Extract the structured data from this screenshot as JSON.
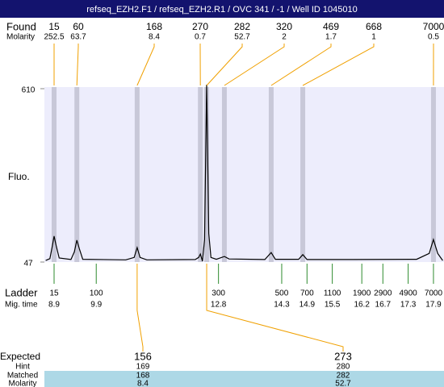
{
  "header": {
    "title": "refseq_EZH2.F1 / refseq_EZH2.R1 / OVC 341 / -1 / Well ID 1045010"
  },
  "chart_data": {
    "type": "line",
    "y_label": "Fluo.",
    "ylim": [
      47,
      610
    ],
    "yticks": [
      47,
      610
    ],
    "xlim": [
      8.67,
      18.15
    ],
    "trace": {
      "color": "#000000",
      "x": [
        8.7,
        8.8,
        8.86,
        8.9,
        8.95,
        9.02,
        9.3,
        9.38,
        9.44,
        9.5,
        9.58,
        10.6,
        10.8,
        10.87,
        10.94,
        11.1,
        12.25,
        12.33,
        12.37,
        12.42,
        12.47,
        12.52,
        12.57,
        12.62,
        12.75,
        12.94,
        13.05,
        13.9,
        14.05,
        14.15,
        14.7,
        14.8,
        14.9,
        16.0,
        17.5,
        17.8,
        17.9,
        18.0,
        18.12
      ],
      "values": [
        52,
        58,
        100,
        131,
        100,
        60,
        55,
        80,
        118,
        90,
        56,
        54,
        62,
        94,
        62,
        54,
        55,
        62,
        73,
        50,
        120,
        623,
        140,
        62,
        56,
        65,
        57,
        55,
        78,
        56,
        56,
        71,
        55,
        55,
        56,
        75,
        120,
        75,
        52
      ]
    },
    "found": {
      "label": "Found",
      "molarity_label": "Molarity",
      "peaks": [
        {
          "size": 15,
          "molarity": 252.5,
          "time": 8.9
        },
        {
          "size": 60,
          "molarity": 63.7,
          "time": 9.44
        },
        {
          "size": 168,
          "molarity": 8.4,
          "time": 10.87
        },
        {
          "size": 270,
          "molarity": 0.7,
          "time": 12.37
        },
        {
          "size": 282,
          "molarity": 52.7,
          "time": 12.52
        },
        {
          "size": 320,
          "molarity": 2,
          "time": 12.94
        },
        {
          "size": 469,
          "molarity": 1.7,
          "time": 14.05
        },
        {
          "size": 668,
          "molarity": 1,
          "time": 14.8
        },
        {
          "size": 7000,
          "molarity": 0.5,
          "time": 17.9
        }
      ]
    },
    "ladder": {
      "label": "Ladder",
      "time_label": "Mig. time",
      "sizes": [
        15,
        100,
        300,
        500,
        700,
        1100,
        1900,
        2900,
        4900,
        7000
      ],
      "times": [
        8.9,
        9.9,
        12.8,
        14.3,
        14.9,
        15.5,
        16.2,
        16.7,
        17.3,
        17.9
      ]
    },
    "expected": {
      "label": "Expected",
      "hint_label": "Hint",
      "matched_label": "Matched",
      "molarity_label": "Molarity",
      "columns": [
        {
          "expected": 156,
          "hint": 169,
          "matched": 168,
          "molarity": 8.4
        },
        {
          "expected": 273,
          "hint": 280,
          "matched": 282,
          "molarity": 52.7
        }
      ]
    }
  }
}
